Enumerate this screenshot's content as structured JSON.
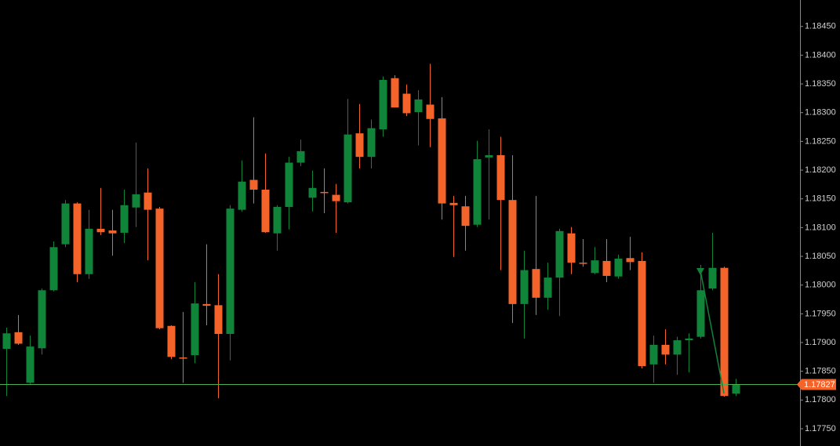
{
  "chart_data": {
    "type": "candlestick",
    "up_color": "#10853a",
    "down_color": "#f4632a",
    "ylim": [
      1.1772,
      1.18496
    ],
    "yticks": [
      {
        "value": 1.1845,
        "label": "1.18450"
      },
      {
        "value": 1.184,
        "label": "1.18400"
      },
      {
        "value": 1.1835,
        "label": "1.18350"
      },
      {
        "value": 1.183,
        "label": "1.18300"
      },
      {
        "value": 1.1825,
        "label": "1.18250"
      },
      {
        "value": 1.182,
        "label": "1.18200"
      },
      {
        "value": 1.1815,
        "label": "1.18150"
      },
      {
        "value": 1.181,
        "label": "1.18100"
      },
      {
        "value": 1.1805,
        "label": "1.18050"
      },
      {
        "value": 1.18,
        "label": "1.18000"
      },
      {
        "value": 1.1795,
        "label": "1.17950"
      },
      {
        "value": 1.179,
        "label": "1.17900"
      },
      {
        "value": 1.1785,
        "label": "1.17850"
      },
      {
        "value": 1.178,
        "label": "1.17800"
      },
      {
        "value": 1.1775,
        "label": "1.17750"
      }
    ],
    "last_price": 1.17827,
    "open": [
      1.17889,
      1.17918,
      1.1783,
      1.1789,
      1.17991,
      1.18071,
      1.18142,
      1.18019,
      1.18098,
      1.18095,
      1.18091,
      1.18135,
      1.18161,
      1.18133,
      1.17929,
      1.17874,
      1.17878,
      1.17967,
      1.17965,
      1.17915,
      1.18131,
      1.18183,
      1.18166,
      1.1809,
      1.18136,
      1.18213,
      1.18152,
      1.18162,
      1.18157,
      1.18144,
      1.18264,
      1.18223,
      1.18271,
      1.1836,
      1.18333,
      1.18301,
      1.18314,
      1.1829,
      1.18143,
      1.18137,
      1.18105,
      1.18222,
      1.18226,
      1.18148,
      1.17967,
      1.18028,
      1.17978,
      1.18013,
      1.1809,
      1.18039,
      1.18021,
      1.18042,
      1.18015,
      1.18047,
      1.18042,
      1.17862,
      1.17896,
      1.17879,
      1.17904,
      1.1791,
      1.17994,
      1.1803,
      1.17811
    ],
    "high": [
      1.17926,
      1.17948,
      1.17912,
      1.17994,
      1.18076,
      1.18148,
      1.18144,
      1.18131,
      1.18169,
      1.18131,
      1.18166,
      1.18248,
      1.18203,
      1.18136,
      1.1793,
      1.17953,
      1.18005,
      1.18071,
      1.18019,
      1.18139,
      1.18217,
      1.18292,
      1.18229,
      1.18139,
      1.18223,
      1.18253,
      1.18199,
      1.18203,
      1.18176,
      1.18324,
      1.18315,
      1.18288,
      1.18363,
      1.18365,
      1.18349,
      1.18339,
      1.18385,
      1.18327,
      1.18155,
      1.18155,
      1.18251,
      1.18271,
      1.18258,
      1.18226,
      1.1806,
      1.18155,
      1.18039,
      1.18098,
      1.18101,
      1.1808,
      1.18066,
      1.1808,
      1.18053,
      1.18084,
      1.18057,
      1.17912,
      1.17923,
      1.1791,
      1.17916,
      1.18035,
      1.18091,
      1.18032,
      1.17837
    ],
    "low": [
      1.17807,
      1.17896,
      1.17828,
      1.17879,
      1.17989,
      1.18066,
      1.18005,
      1.18011,
      1.18087,
      1.18051,
      1.18073,
      1.18101,
      1.18043,
      1.17923,
      1.17871,
      1.1783,
      1.17864,
      1.1793,
      1.17803,
      1.17869,
      1.18128,
      1.18142,
      1.18091,
      1.1806,
      1.18097,
      1.18207,
      1.18128,
      1.18125,
      1.18091,
      1.18142,
      1.18203,
      1.18203,
      1.18258,
      1.18309,
      1.18294,
      1.18243,
      1.1824,
      1.18114,
      1.18049,
      1.1806,
      1.18101,
      1.18114,
      1.18026,
      1.17934,
      1.17907,
      1.17948,
      1.17957,
      1.17946,
      1.18019,
      1.18032,
      1.18019,
      1.18005,
      1.18011,
      1.18026,
      1.17855,
      1.1783,
      1.17862,
      1.17844,
      1.17848,
      1.17907,
      1.17991,
      1.17806,
      1.17807
    ],
    "close": [
      1.17916,
      1.17898,
      1.17893,
      1.17991,
      1.18066,
      1.18142,
      1.18019,
      1.18098,
      1.18092,
      1.1809,
      1.18139,
      1.18158,
      1.18131,
      1.17925,
      1.17875,
      1.17873,
      1.17968,
      1.17964,
      1.17915,
      1.18133,
      1.1818,
      1.18166,
      1.18092,
      1.18136,
      1.18213,
      1.18233,
      1.18169,
      1.18161,
      1.18146,
      1.18262,
      1.18223,
      1.18273,
      1.18357,
      1.18309,
      1.18299,
      1.18323,
      1.18289,
      1.18142,
      1.18139,
      1.18103,
      1.18219,
      1.18226,
      1.18148,
      1.17967,
      1.18026,
      1.17978,
      1.18013,
      1.18094,
      1.18039,
      1.18038,
      1.18043,
      1.18016,
      1.18046,
      1.1804,
      1.17859,
      1.17896,
      1.17879,
      1.17904,
      1.17907,
      1.17991,
      1.1803,
      1.17807,
      1.17827
    ]
  }
}
